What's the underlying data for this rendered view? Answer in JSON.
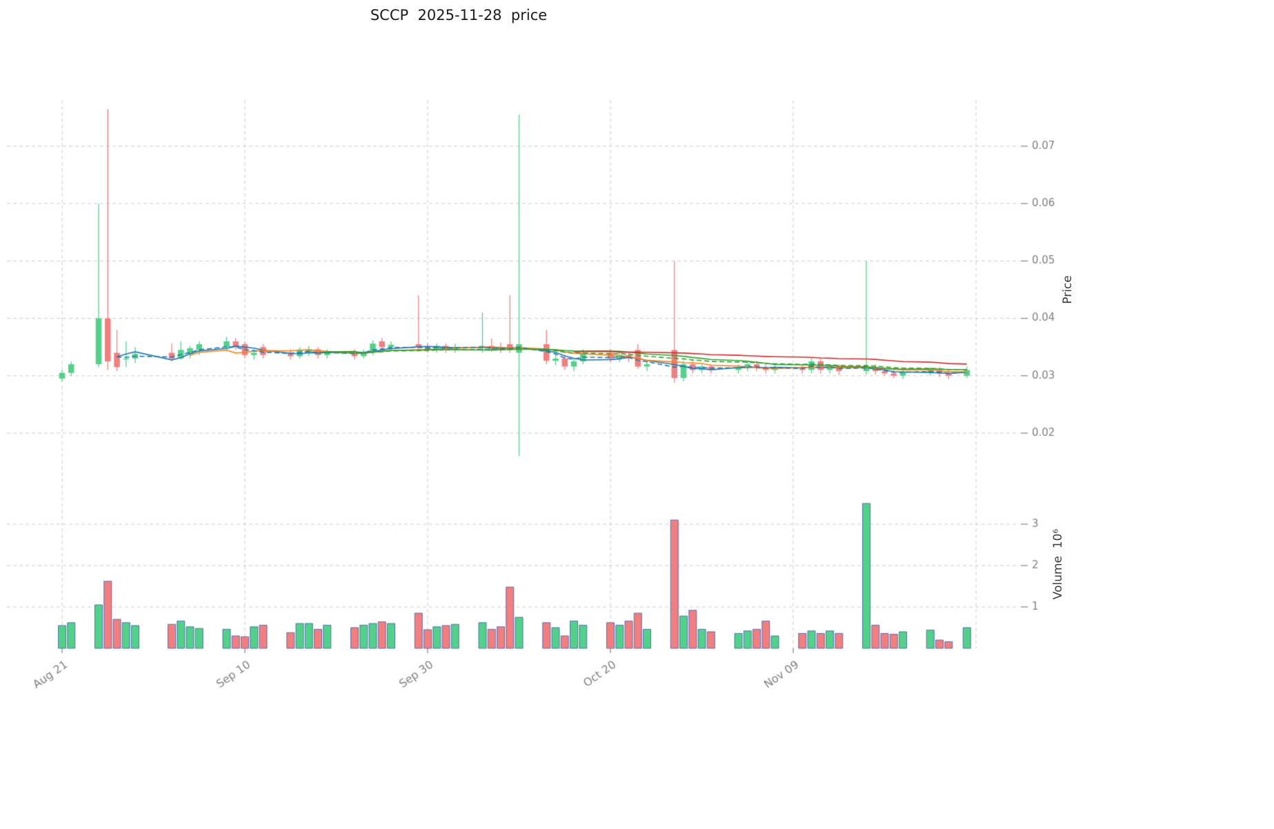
{
  "title": "SCCP  2025-11-28  price",
  "price_axis": {
    "label": "Price",
    "ticks": [
      0.02,
      0.03,
      0.04,
      0.05,
      0.06,
      0.07
    ],
    "range": [
      0.012,
      0.0787
    ]
  },
  "volume_axis": {
    "label": "Volume  10⁶",
    "unit": "10^6",
    "ticks": [
      1,
      2,
      3
    ],
    "range": [
      0,
      4
    ]
  },
  "x_axis": {
    "ticks": [
      {
        "label": "Aug 21",
        "day": 0
      },
      {
        "label": "Sep 10",
        "day": 20
      },
      {
        "label": "Sep 30",
        "day": 40
      },
      {
        "label": "Oct 20",
        "day": 60
      },
      {
        "label": "Nov 09",
        "day": 80
      }
    ],
    "extra_gridline_days": [
      100
    ],
    "day_range": [
      -6,
      101
    ]
  },
  "colors": {
    "up": "#53d08a",
    "down": "#f17f80",
    "up_volume": "#53d08a",
    "down_volume": "#f17f80",
    "volume_edge": "#4a64ad",
    "grid": "#cccccc",
    "tick_text": "#7f7f7f",
    "axis_text": "#3c3c3c",
    "title_text": "#1a1a1a",
    "ma5": "#1f77b4",
    "ma10": "#ff7f0e",
    "ma20": "#2ca02c",
    "ma40": "#d62728"
  },
  "chart_data": {
    "type": "candlestick+volume",
    "symbol": "SCCP",
    "as_of_date": "2025-11-28",
    "title": "SCCP  2025-11-28  price",
    "grid": true,
    "legend": false,
    "overlays": [
      {
        "type": "sma",
        "window": 5,
        "color": "#1f77b4",
        "style": "solid"
      },
      {
        "type": "sma",
        "window": 10,
        "color": "#ff7f0e",
        "style": "solid"
      },
      {
        "type": "sma",
        "window": 20,
        "color": "#2ca02c",
        "style": "solid"
      },
      {
        "type": "sma",
        "window": 40,
        "color": "#d62728",
        "style": "solid"
      },
      {
        "type": "ema",
        "window": 5,
        "color": "#1f77b4",
        "style": "dashed"
      },
      {
        "type": "ema",
        "window": 20,
        "color": "#2ca02c",
        "style": "dashed"
      }
    ],
    "candles_columns": [
      "date",
      "day_offset",
      "open",
      "high",
      "low",
      "close",
      "volume_millions"
    ],
    "candles": [
      [
        "2025-08-21",
        0,
        0.0295,
        0.031,
        0.029,
        0.0305,
        0.55
      ],
      [
        "2025-08-22",
        1,
        0.0305,
        0.0325,
        0.03,
        0.032,
        0.62
      ],
      [
        "2025-08-25",
        4,
        0.032,
        0.06,
        0.0315,
        0.04,
        1.05
      ],
      [
        "2025-08-26",
        5,
        0.04,
        0.0765,
        0.031,
        0.0325,
        1.62
      ],
      [
        "2025-08-27",
        6,
        0.034,
        0.038,
        0.0308,
        0.0315,
        0.7
      ],
      [
        "2025-08-28",
        7,
        0.033,
        0.036,
        0.0315,
        0.033,
        0.62
      ],
      [
        "2025-08-29",
        8,
        0.033,
        0.035,
        0.0322,
        0.0338,
        0.55
      ],
      [
        "2025-09-02",
        12,
        0.034,
        0.0356,
        0.0325,
        0.033,
        0.58
      ],
      [
        "2025-09-03",
        13,
        0.033,
        0.036,
        0.0328,
        0.0345,
        0.66
      ],
      [
        "2025-09-04",
        14,
        0.0338,
        0.0352,
        0.033,
        0.0348,
        0.52
      ],
      [
        "2025-09-05",
        15,
        0.0345,
        0.036,
        0.0336,
        0.0355,
        0.48
      ],
      [
        "2025-09-08",
        18,
        0.035,
        0.0368,
        0.0344,
        0.036,
        0.46
      ],
      [
        "2025-09-09",
        19,
        0.036,
        0.0366,
        0.0345,
        0.035,
        0.3
      ],
      [
        "2025-09-10",
        20,
        0.0355,
        0.036,
        0.033,
        0.0336,
        0.28
      ],
      [
        "2025-09-11",
        21,
        0.0336,
        0.0346,
        0.0328,
        0.034,
        0.52
      ],
      [
        "2025-09-12",
        22,
        0.035,
        0.0355,
        0.033,
        0.0336,
        0.56
      ],
      [
        "2025-09-15",
        25,
        0.034,
        0.0346,
        0.0328,
        0.0334,
        0.38
      ],
      [
        "2025-09-16",
        26,
        0.0334,
        0.035,
        0.033,
        0.0345,
        0.6
      ],
      [
        "2025-09-17",
        27,
        0.034,
        0.0352,
        0.0334,
        0.0346,
        0.6
      ],
      [
        "2025-09-18",
        28,
        0.0346,
        0.035,
        0.033,
        0.0336,
        0.46
      ],
      [
        "2025-09-19",
        29,
        0.0336,
        0.0346,
        0.033,
        0.0342,
        0.56
      ],
      [
        "2025-09-22",
        32,
        0.0342,
        0.0346,
        0.0328,
        0.0334,
        0.5
      ],
      [
        "2025-09-23",
        33,
        0.0334,
        0.0346,
        0.033,
        0.0342,
        0.56
      ],
      [
        "2025-09-24",
        34,
        0.0342,
        0.0362,
        0.0336,
        0.0356,
        0.6
      ],
      [
        "2025-09-25",
        35,
        0.036,
        0.0366,
        0.0344,
        0.035,
        0.64
      ],
      [
        "2025-09-26",
        36,
        0.035,
        0.036,
        0.0344,
        0.0354,
        0.6
      ],
      [
        "2025-09-29",
        39,
        0.0355,
        0.044,
        0.0345,
        0.035,
        0.85
      ],
      [
        "2025-09-30",
        40,
        0.035,
        0.0356,
        0.034,
        0.0346,
        0.45
      ],
      [
        "2025-10-01",
        41,
        0.0346,
        0.0356,
        0.034,
        0.0352,
        0.52
      ],
      [
        "2025-10-02",
        42,
        0.0352,
        0.0356,
        0.034,
        0.0346,
        0.55
      ],
      [
        "2025-10-03",
        43,
        0.0346,
        0.0356,
        0.034,
        0.035,
        0.58
      ],
      [
        "2025-10-06",
        46,
        0.035,
        0.041,
        0.034,
        0.0352,
        0.62
      ],
      [
        "2025-10-07",
        47,
        0.0352,
        0.0365,
        0.0342,
        0.0346,
        0.46
      ],
      [
        "2025-10-08",
        48,
        0.035,
        0.0358,
        0.034,
        0.0346,
        0.52
      ],
      [
        "2025-10-09",
        49,
        0.0355,
        0.044,
        0.034,
        0.0346,
        1.48
      ],
      [
        "2025-10-10",
        50,
        0.034,
        0.0755,
        0.016,
        0.0355,
        0.75
      ],
      [
        "2025-10-13",
        53,
        0.0355,
        0.038,
        0.032,
        0.0326,
        0.62
      ],
      [
        "2025-10-14",
        54,
        0.0326,
        0.034,
        0.0318,
        0.033,
        0.5
      ],
      [
        "2025-10-15",
        55,
        0.033,
        0.0336,
        0.031,
        0.0316,
        0.3
      ],
      [
        "2025-10-16",
        56,
        0.0316,
        0.033,
        0.0308,
        0.0325,
        0.66
      ],
      [
        "2025-10-17",
        57,
        0.0325,
        0.0346,
        0.032,
        0.034,
        0.56
      ],
      [
        "2025-10-20",
        60,
        0.034,
        0.0346,
        0.0324,
        0.033,
        0.62
      ],
      [
        "2025-10-21",
        61,
        0.033,
        0.034,
        0.0324,
        0.0336,
        0.56
      ],
      [
        "2025-10-22",
        62,
        0.0336,
        0.034,
        0.0324,
        0.033,
        0.66
      ],
      [
        "2025-10-23",
        63,
        0.0345,
        0.0355,
        0.0312,
        0.0316,
        0.85
      ],
      [
        "2025-10-24",
        64,
        0.0316,
        0.0326,
        0.0308,
        0.032,
        0.46
      ],
      [
        "2025-10-27",
        67,
        0.0345,
        0.05,
        0.0288,
        0.0296,
        3.1
      ],
      [
        "2025-10-28",
        68,
        0.0296,
        0.0326,
        0.029,
        0.032,
        0.78
      ],
      [
        "2025-10-29",
        69,
        0.032,
        0.0326,
        0.0304,
        0.031,
        0.92
      ],
      [
        "2025-10-30",
        70,
        0.031,
        0.032,
        0.0304,
        0.0316,
        0.46
      ],
      [
        "2025-10-31",
        71,
        0.0316,
        0.032,
        0.0304,
        0.031,
        0.4
      ],
      [
        "2025-11-03",
        74,
        0.031,
        0.032,
        0.0304,
        0.0315,
        0.36
      ],
      [
        "2025-11-04",
        75,
        0.0315,
        0.0326,
        0.0308,
        0.032,
        0.42
      ],
      [
        "2025-11-05",
        76,
        0.032,
        0.0326,
        0.0308,
        0.0314,
        0.46
      ],
      [
        "2025-11-06",
        77,
        0.0314,
        0.032,
        0.0304,
        0.031,
        0.66
      ],
      [
        "2025-11-07",
        78,
        0.031,
        0.032,
        0.0304,
        0.0315,
        0.3
      ],
      [
        "2025-11-10",
        81,
        0.0315,
        0.032,
        0.0304,
        0.031,
        0.36
      ],
      [
        "2025-11-11",
        82,
        0.031,
        0.033,
        0.0304,
        0.0325,
        0.42
      ],
      [
        "2025-11-12",
        83,
        0.0325,
        0.033,
        0.0304,
        0.031,
        0.36
      ],
      [
        "2025-11-13",
        84,
        0.031,
        0.032,
        0.0304,
        0.0316,
        0.42
      ],
      [
        "2025-11-14",
        85,
        0.0316,
        0.032,
        0.0302,
        0.0308,
        0.36
      ],
      [
        "2025-11-17",
        88,
        0.0308,
        0.05,
        0.0302,
        0.0315,
        3.5
      ],
      [
        "2025-11-18",
        89,
        0.0315,
        0.032,
        0.0302,
        0.0308,
        0.56
      ],
      [
        "2025-11-19",
        90,
        0.0308,
        0.0315,
        0.03,
        0.0304,
        0.36
      ],
      [
        "2025-11-20",
        91,
        0.0304,
        0.031,
        0.0296,
        0.03,
        0.34
      ],
      [
        "2025-11-21",
        92,
        0.03,
        0.031,
        0.0294,
        0.0306,
        0.4
      ],
      [
        "2025-11-24",
        95,
        0.0306,
        0.0315,
        0.03,
        0.031,
        0.44
      ],
      [
        "2025-11-25",
        96,
        0.031,
        0.0315,
        0.0298,
        0.0304,
        0.2
      ],
      [
        "2025-11-26",
        97,
        0.0304,
        0.031,
        0.0294,
        0.03,
        0.16
      ],
      [
        "2025-11-28",
        99,
        0.03,
        0.0316,
        0.0296,
        0.031,
        0.5
      ]
    ]
  }
}
